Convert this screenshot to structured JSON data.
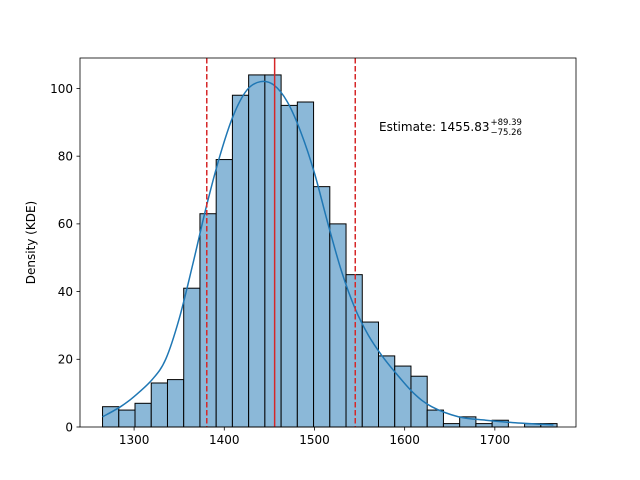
{
  "chart_data": {
    "type": "bar",
    "title": "",
    "xlabel": "",
    "ylabel": "Density (KDE)",
    "xlim": [
      1240,
      1790
    ],
    "ylim": [
      0,
      109
    ],
    "xticks": [
      1300,
      1400,
      1500,
      1600,
      1700
    ],
    "yticks": [
      0,
      20,
      40,
      60,
      80,
      100
    ],
    "bin_start": 1265,
    "bin_width": 18,
    "counts": [
      6,
      5,
      7,
      13,
      14,
      41,
      63,
      79,
      98,
      104,
      104,
      95,
      96,
      71,
      60,
      45,
      31,
      21,
      18,
      15,
      5,
      1,
      3,
      1,
      2,
      0,
      1,
      1
    ],
    "kde": {
      "x": [
        1265,
        1285,
        1300,
        1320,
        1335,
        1350,
        1365,
        1380,
        1395,
        1410,
        1425,
        1440,
        1455,
        1470,
        1485,
        1500,
        1515,
        1530,
        1545,
        1560,
        1575,
        1590,
        1610,
        1630,
        1660,
        1690,
        1720,
        1765
      ],
      "y": [
        3,
        6,
        9,
        14,
        20,
        32,
        48,
        65,
        80,
        92,
        99.5,
        102,
        101,
        96,
        87,
        75,
        60,
        46,
        35,
        27,
        21,
        16,
        10,
        6,
        3,
        2,
        1.3,
        0.6
      ]
    },
    "estimate": 1455.83,
    "lower": 1380.57,
    "upper": 1545.22,
    "annotation": {
      "prefix": "Estimate: ",
      "value": "1455.83",
      "plus": "+89.39",
      "minus": "−75.26"
    },
    "colors": {
      "bar_fill": "#8bb8d8",
      "bar_edge": "#000000",
      "kde_line": "#1f77b4",
      "estimate_line": "#d62728"
    }
  }
}
